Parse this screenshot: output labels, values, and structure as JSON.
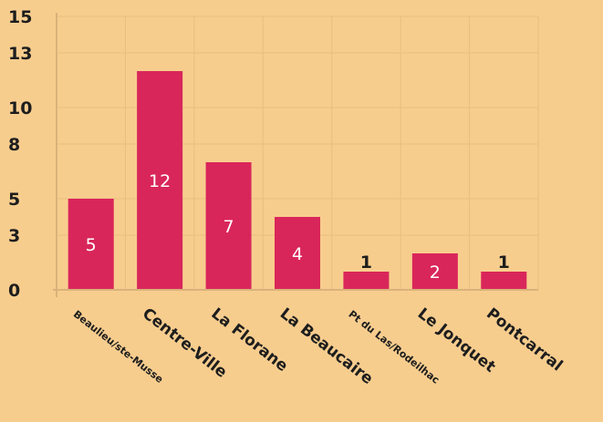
{
  "chart_data": {
    "type": "bar",
    "categories": [
      "Beaulieu/ste-Musse",
      "Centre-Ville",
      "La Florane",
      "La Beaucaire",
      "Pt du Las/Rodeilhac",
      "Le Jonquet",
      "Pontcarral"
    ],
    "values": [
      5,
      12,
      7,
      4,
      1,
      2,
      1
    ],
    "data_labels": [
      "5",
      "12",
      "7",
      "4",
      "1",
      "2",
      "1"
    ],
    "ylim": [
      0,
      15
    ],
    "yticks": [
      0,
      3,
      5,
      8,
      10,
      13,
      15
    ],
    "ytick_labels": [
      "0",
      "3",
      "5",
      "8",
      "10",
      "13",
      "15"
    ],
    "title": "",
    "xlabel": "",
    "ylabel": "",
    "grid": true,
    "legend": "none",
    "colors": {
      "background": "#f7cd8e",
      "bar": "#d9265a",
      "grid": "#e8bf7f",
      "axis": "#d9b27a",
      "text": "#1d1d1d"
    }
  }
}
